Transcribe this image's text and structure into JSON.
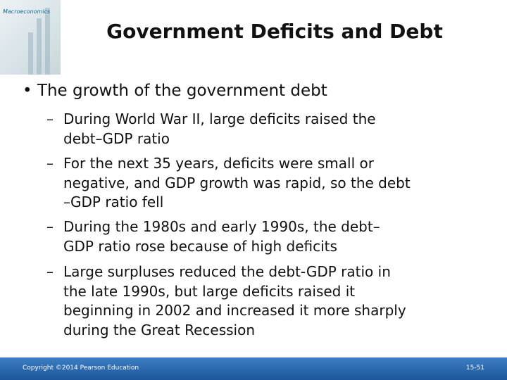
{
  "header": {
    "title": "Government Deficits and Debt",
    "cover_title": "Macroeconomics"
  },
  "bullet": "The growth of the government debt",
  "sub_bullets": [
    [
      "During World War II, large deficits raised the",
      "debt–GDP ratio"
    ],
    [
      "For the next 35 years, deficits were small or",
      "negative, and GDP growth was rapid, so the debt",
      "–GDP ratio fell"
    ],
    [
      "During the 1980s and early 1990s, the debt–",
      "GDP ratio rose because of high deficits"
    ],
    [
      "Large surpluses reduced the debt-GDP ratio in",
      "the late 1990s, but large deficits raised it",
      "beginning in 2002 and increased it more sharply",
      "during the Great Recession"
    ]
  ],
  "footer": {
    "copyright": "Copyright ©2014 Pearson Education",
    "page": "15-51"
  }
}
